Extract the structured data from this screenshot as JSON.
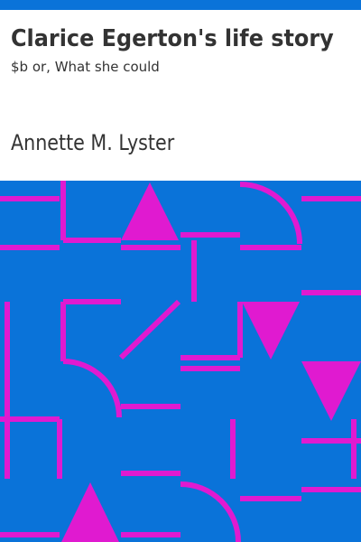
{
  "book": {
    "title": "Clarice Egerton's life story",
    "subtitle": "$b or, What she could",
    "author": "Annette M. Lyster"
  },
  "colors": {
    "header_bar": "#0a73d9",
    "pattern_background": "#0a73d9",
    "pattern_lines": "#e01ad0",
    "text": "#333333",
    "page_background": "#ffffff"
  }
}
